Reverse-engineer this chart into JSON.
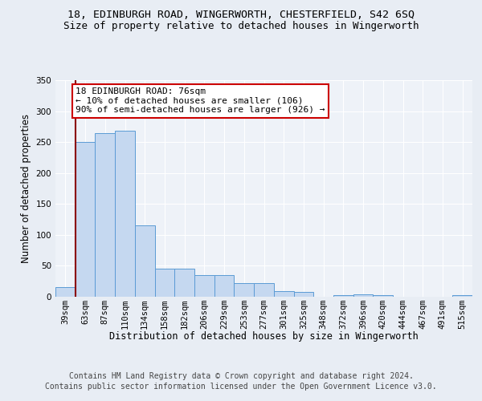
{
  "title": "18, EDINBURGH ROAD, WINGERWORTH, CHESTERFIELD, S42 6SQ",
  "subtitle": "Size of property relative to detached houses in Wingerworth",
  "xlabel": "Distribution of detached houses by size in Wingerworth",
  "ylabel": "Number of detached properties",
  "footer_line1": "Contains HM Land Registry data © Crown copyright and database right 2024.",
  "footer_line2": "Contains public sector information licensed under the Open Government Licence v3.0.",
  "categories": [
    "39sqm",
    "63sqm",
    "87sqm",
    "110sqm",
    "134sqm",
    "158sqm",
    "182sqm",
    "206sqm",
    "229sqm",
    "253sqm",
    "277sqm",
    "301sqm",
    "325sqm",
    "348sqm",
    "372sqm",
    "396sqm",
    "420sqm",
    "444sqm",
    "467sqm",
    "491sqm",
    "515sqm"
  ],
  "values": [
    16,
    250,
    265,
    268,
    115,
    45,
    45,
    35,
    35,
    22,
    22,
    9,
    8,
    0,
    3,
    4,
    3,
    0,
    0,
    0,
    3
  ],
  "bar_color": "#c5d8f0",
  "bar_edge_color": "#5b9bd5",
  "vline_color": "#8b0000",
  "annotation_text": "18 EDINBURGH ROAD: 76sqm\n← 10% of detached houses are smaller (106)\n90% of semi-detached houses are larger (926) →",
  "annotation_box_color": "#ffffff",
  "annotation_box_edge": "#cc0000",
  "ylim": [
    0,
    350
  ],
  "yticks": [
    0,
    50,
    100,
    150,
    200,
    250,
    300,
    350
  ],
  "bg_color": "#e8edf4",
  "plot_bg_color": "#eef2f8",
  "grid_color": "#ffffff",
  "title_fontsize": 9.5,
  "subtitle_fontsize": 9,
  "axis_label_fontsize": 8.5,
  "tick_fontsize": 7.5,
  "annotation_fontsize": 8,
  "footer_fontsize": 7
}
